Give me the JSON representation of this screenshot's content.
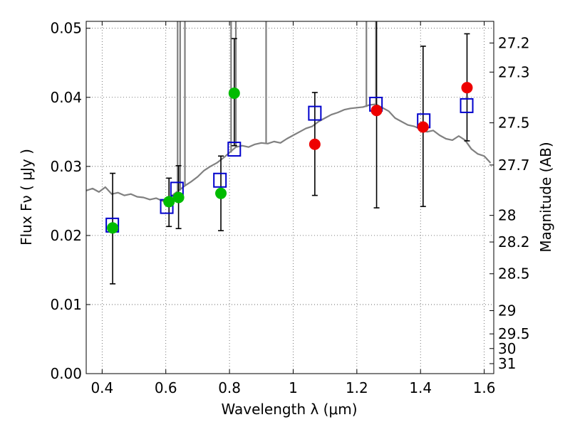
{
  "chart_data": {
    "type": "scatter",
    "xlabel": "Wavelength  λ (μm)",
    "ylabel": "Flux  Fν  ( μJy )",
    "y2label": "Magnitude (AB)",
    "xlim": [
      0.35,
      1.63
    ],
    "ylim": [
      0.0,
      0.051
    ],
    "grid": true,
    "x_ticks": [
      0.4,
      0.6,
      0.8,
      1.0,
      1.2,
      1.4,
      1.6
    ],
    "x_tick_labels": [
      "0.4",
      "0.6",
      "0.8",
      "1",
      "1.2",
      "1.4",
      "1.6"
    ],
    "y_ticks": [
      0.0,
      0.01,
      0.02,
      0.03,
      0.04,
      0.05
    ],
    "y_tick_labels": [
      "0.00",
      "0.01",
      "0.02",
      "0.03",
      "0.04",
      "0.05"
    ],
    "mag_ticks": [
      "27.2",
      "27.3",
      "27.5",
      "27.7",
      "28",
      "28.2",
      "28.5",
      "29",
      "29.5",
      "30",
      "31"
    ],
    "colors": {
      "spectrum": "#808080",
      "model_points": "#0000cc",
      "green_points": "#00bb00",
      "red_points": "#ee0000",
      "errorbars": "#000000",
      "grid": "#555555"
    },
    "spectrum": {
      "x": [
        0.35,
        0.37,
        0.39,
        0.41,
        0.43,
        0.45,
        0.47,
        0.49,
        0.51,
        0.53,
        0.55,
        0.57,
        0.59,
        0.6,
        0.62,
        0.64,
        0.66,
        0.68,
        0.7,
        0.72,
        0.74,
        0.76,
        0.78,
        0.8,
        0.82,
        0.84,
        0.86,
        0.88,
        0.9,
        0.92,
        0.94,
        0.96,
        0.98,
        1.0,
        1.02,
        1.04,
        1.06,
        1.08,
        1.1,
        1.12,
        1.14,
        1.16,
        1.18,
        1.2,
        1.22,
        1.24,
        1.26,
        1.28,
        1.3,
        1.32,
        1.34,
        1.36,
        1.38,
        1.4,
        1.42,
        1.44,
        1.46,
        1.48,
        1.5,
        1.52,
        1.54,
        1.56,
        1.58,
        1.6,
        1.62
      ],
      "y": [
        0.0265,
        0.0268,
        0.0263,
        0.027,
        0.026,
        0.0262,
        0.0258,
        0.026,
        0.0256,
        0.0255,
        0.0252,
        0.0254,
        0.025,
        0.0248,
        0.0258,
        0.0265,
        0.0272,
        0.0278,
        0.0285,
        0.0294,
        0.03,
        0.0305,
        0.0312,
        0.032,
        0.0328,
        0.033,
        0.0328,
        0.0332,
        0.0334,
        0.0333,
        0.0336,
        0.0334,
        0.034,
        0.0345,
        0.035,
        0.0355,
        0.0358,
        0.0365,
        0.037,
        0.0375,
        0.0378,
        0.0382,
        0.0384,
        0.0385,
        0.0386,
        0.0389,
        0.039,
        0.0385,
        0.038,
        0.037,
        0.0365,
        0.036,
        0.0358,
        0.0354,
        0.035,
        0.0352,
        0.0345,
        0.034,
        0.0338,
        0.0344,
        0.0338,
        0.0325,
        0.0318,
        0.0315,
        0.0305
      ]
    },
    "spectrum_lines": [
      {
        "x": 0.637,
        "y": 0.051
      },
      {
        "x": 0.645,
        "y": 0.051
      },
      {
        "x": 0.66,
        "y": 0.051
      },
      {
        "x": 0.805,
        "y": 0.051
      },
      {
        "x": 0.82,
        "y": 0.051
      },
      {
        "x": 0.915,
        "y": 0.051
      },
      {
        "x": 1.23,
        "y": 0.051
      },
      {
        "x": 1.26,
        "y": 0.051
      }
    ],
    "series": [
      {
        "marker": "open-square",
        "x": [
          0.432,
          0.603,
          0.635,
          0.77,
          0.815,
          1.068,
          1.26,
          1.41,
          1.545
        ],
        "y": [
          0.0215,
          0.0242,
          0.0267,
          0.028,
          0.0325,
          0.0377,
          0.039,
          0.0366,
          0.0388
        ]
      },
      {
        "marker": "filled-circle",
        "x": [
          0.433,
          0.61,
          0.64,
          0.773,
          0.815
        ],
        "y": [
          0.0211,
          0.0249,
          0.0255,
          0.0261,
          0.0406
        ],
        "yerr_low": [
          0.013,
          0.0213,
          0.021,
          0.0207,
          0.033
        ],
        "yerr_high": [
          0.029,
          0.0283,
          0.0301,
          0.0315,
          0.0485
        ]
      },
      {
        "marker": "filled-circle",
        "x": [
          1.068,
          1.262,
          1.408,
          1.546
        ],
        "y": [
          0.0332,
          0.0381,
          0.0357,
          0.0414
        ],
        "yerr_low": [
          0.0258,
          0.024,
          0.0242,
          0.0337
        ],
        "yerr_high": [
          0.0407,
          0.051,
          0.0474,
          0.0492
        ]
      }
    ]
  }
}
